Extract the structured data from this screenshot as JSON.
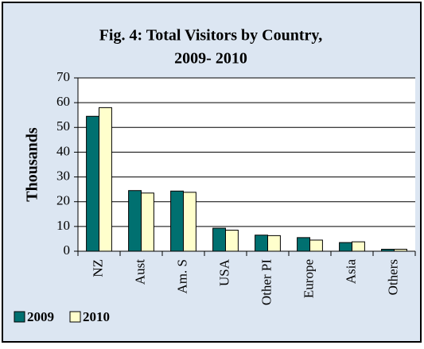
{
  "chart_data": {
    "type": "bar",
    "title": [
      "Fig. 4: Total Visitors by Country,",
      "2009- 2010"
    ],
    "y_label": "Thousands",
    "categories": [
      "NZ",
      "Aust",
      "Am. S",
      "USA",
      "Other PI",
      "Europe",
      "Asia",
      "Others"
    ],
    "series": [
      {
        "name": "2009",
        "color": "#007070",
        "values": [
          54.5,
          24.5,
          24.3,
          9.3,
          6.5,
          5.5,
          3.5,
          0.8
        ]
      },
      {
        "name": "2010",
        "color": "#ffffcc",
        "values": [
          58,
          23.5,
          23.8,
          8.5,
          6.3,
          4.5,
          3.8,
          0.8
        ]
      }
    ],
    "ylim": [
      0,
      70
    ],
    "yticks": [
      0,
      10,
      20,
      30,
      40,
      50,
      60,
      70
    ],
    "grid": true,
    "legend": "bottom-left"
  }
}
